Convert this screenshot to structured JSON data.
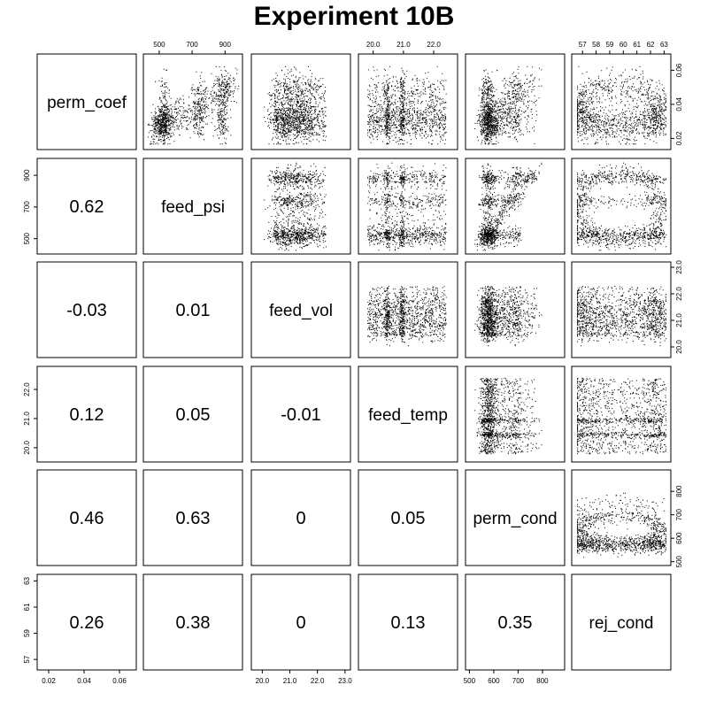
{
  "chart_data": {
    "type": "scatter-matrix",
    "title": "Experiment 10B",
    "variables": [
      "perm_coef",
      "feed_psi",
      "feed_vol",
      "feed_temp",
      "perm_cond",
      "rej_cond"
    ],
    "correlations": [
      {
        "row": 1,
        "col": 0,
        "value": "0.62"
      },
      {
        "row": 2,
        "col": 0,
        "value": "-0.03"
      },
      {
        "row": 2,
        "col": 1,
        "value": "0.01"
      },
      {
        "row": 3,
        "col": 0,
        "value": "0.12"
      },
      {
        "row": 3,
        "col": 1,
        "value": "0.05"
      },
      {
        "row": 3,
        "col": 2,
        "value": "-0.01"
      },
      {
        "row": 4,
        "col": 0,
        "value": "0.46"
      },
      {
        "row": 4,
        "col": 1,
        "value": "0.63"
      },
      {
        "row": 4,
        "col": 2,
        "value": "0"
      },
      {
        "row": 4,
        "col": 3,
        "value": "0.05"
      },
      {
        "row": 5,
        "col": 0,
        "value": "0.26"
      },
      {
        "row": 5,
        "col": 1,
        "value": "0.38"
      },
      {
        "row": 5,
        "col": 2,
        "value": "0"
      },
      {
        "row": 5,
        "col": 3,
        "value": "0.13"
      },
      {
        "row": 5,
        "col": 4,
        "value": "0.35"
      }
    ],
    "axes": [
      {
        "variable": "perm_coef",
        "range": [
          0.015,
          0.068
        ],
        "ticks": [
          "0.02",
          "0.04",
          "0.06"
        ],
        "tick_values": [
          0.02,
          0.04,
          0.06
        ]
      },
      {
        "variable": "feed_psi",
        "range": [
          420,
          990
        ],
        "ticks": [
          "500",
          "700",
          "900"
        ],
        "tick_values": [
          500,
          700,
          900
        ]
      },
      {
        "variable": "feed_vol",
        "range": [
          19.7,
          23.1
        ],
        "ticks": [
          "20.0",
          "21.0",
          "22.0",
          "23.0"
        ],
        "tick_values": [
          20.0,
          21.0,
          22.0,
          23.0
        ]
      },
      {
        "variable": "feed_temp",
        "range": [
          19.6,
          22.7
        ],
        "ticks": [
          "20.0",
          "21.0",
          "22.0"
        ],
        "tick_values": [
          20.0,
          21.0,
          22.0
        ]
      },
      {
        "variable": "perm_cond",
        "range": [
          495,
          880
        ],
        "ticks": [
          "500",
          "600",
          "700",
          "800"
        ],
        "tick_values": [
          500,
          600,
          700,
          800
        ]
      },
      {
        "variable": "rej_cond",
        "range": [
          56.4,
          63.3
        ],
        "ticks": [
          "57",
          "58",
          "59",
          "60",
          "61",
          "62",
          "63"
        ],
        "tick_values": [
          57,
          58,
          59,
          60,
          61,
          62,
          63
        ]
      }
    ],
    "axis_labels": {
      "top": [
        {
          "col": 1,
          "ticks": [
            "500",
            "700",
            "900"
          ],
          "tick_values": [
            500,
            700,
            900
          ]
        },
        {
          "col": 3,
          "ticks": [
            "20.0",
            "21.0",
            "22.0"
          ],
          "tick_values": [
            20.0,
            21.0,
            22.0
          ]
        },
        {
          "col": 5,
          "ticks": [
            "57",
            "58",
            "59",
            "60",
            "61",
            "62",
            "63"
          ],
          "tick_values": [
            57,
            58,
            59,
            60,
            61,
            62,
            63
          ]
        }
      ],
      "bottom": [
        {
          "col": 0,
          "ticks": [
            "0.02",
            "0.04",
            "0.06"
          ],
          "tick_values": [
            0.02,
            0.04,
            0.06
          ]
        },
        {
          "col": 2,
          "ticks": [
            "20.0",
            "21.0",
            "22.0",
            "23.0"
          ],
          "tick_values": [
            20.0,
            21.0,
            22.0,
            23.0
          ]
        },
        {
          "col": 4,
          "ticks": [
            "500",
            "600",
            "700",
            "800"
          ],
          "tick_values": [
            500,
            600,
            700,
            800
          ]
        }
      ],
      "left": [
        {
          "row": 1,
          "ticks": [
            "500",
            "700",
            "900"
          ],
          "tick_values": [
            500,
            700,
            900
          ]
        },
        {
          "row": 3,
          "ticks": [
            "20.0",
            "21.0",
            "22.0"
          ],
          "tick_values": [
            20.0,
            21.0,
            22.0
          ]
        },
        {
          "row": 5,
          "ticks": [
            "57",
            "59",
            "61",
            "63"
          ],
          "tick_values": [
            57,
            59,
            61,
            63
          ]
        }
      ],
      "right": [
        {
          "row": 0,
          "ticks": [
            "0.02",
            "0.04",
            "0.06"
          ],
          "tick_values": [
            0.02,
            0.04,
            0.06
          ]
        },
        {
          "row": 2,
          "ticks": [
            "20.0",
            "21.0",
            "22.0",
            "23.0"
          ],
          "tick_values": [
            20.0,
            21.0,
            22.0,
            23.0
          ]
        },
        {
          "row": 4,
          "ticks": [
            "500",
            "600",
            "700",
            "800"
          ],
          "tick_values": [
            500,
            600,
            700,
            800
          ]
        }
      ]
    },
    "point_color": "#000000",
    "grid": false
  }
}
